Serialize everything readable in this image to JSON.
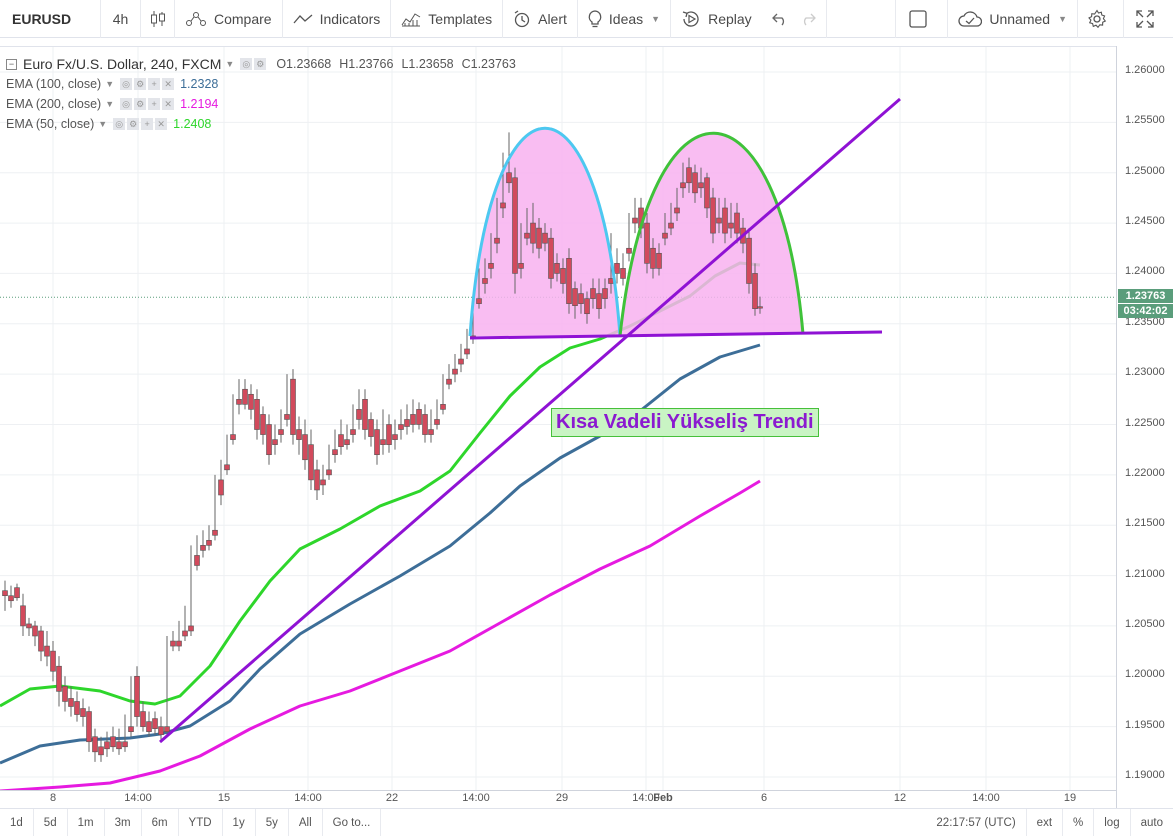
{
  "toolbar": {
    "symbol": "EURUSD",
    "interval": "4h",
    "compare": "Compare",
    "indicators": "Indicators",
    "templates": "Templates",
    "alert": "Alert",
    "ideas": "Ideas",
    "replay": "Replay",
    "layout_name": "Unnamed"
  },
  "legend": {
    "title": "Euro Fx/U.S. Dollar, 240, FXCM",
    "open": "O1.23668",
    "high": "H1.23766",
    "low": "L1.23658",
    "close": "C1.23763",
    "indicators": [
      {
        "label": "EMA (100, close)",
        "value": "1.2328",
        "color": "#3d6e98"
      },
      {
        "label": "EMA (200, close)",
        "value": "1.2194",
        "color": "#e61ae0"
      },
      {
        "label": "EMA (50, close)",
        "value": "1.2408",
        "color": "#2ed62b"
      }
    ]
  },
  "price_axis": {
    "ticks": [
      "1.26000",
      "1.25500",
      "1.25000",
      "1.24500",
      "1.24000",
      "1.23500",
      "1.23000",
      "1.22500",
      "1.22000",
      "1.21500",
      "1.21000",
      "1.20500",
      "1.20000",
      "1.19500",
      "1.19000"
    ],
    "last_price": "1.23763",
    "countdown": "03:42:02"
  },
  "time_axis": {
    "ticks": [
      "8",
      "14:00",
      "15",
      "14:00",
      "22",
      "14:00",
      "29",
      "14:00",
      "Feb",
      "6",
      "12",
      "14:00",
      "19"
    ]
  },
  "annotation": {
    "text": "Kısa Vadeli Yükseliş Trendi"
  },
  "bottom_bar": {
    "ranges": [
      "1d",
      "5d",
      "1m",
      "3m",
      "6m",
      "YTD",
      "1y",
      "5y",
      "All"
    ],
    "goto": "Go to...",
    "clock": "22:17:57 (UTC)",
    "options": [
      "ext",
      "%",
      "log",
      "auto"
    ]
  },
  "colors": {
    "up_candle": "#53a07a",
    "down_candle": "#d24a5c",
    "ema50": "#2ed62b",
    "ema100": "#3d6e98",
    "ema200": "#e61ae0",
    "trendline": "#8f12d4",
    "pattern_fill": "#f8b2f0"
  }
}
